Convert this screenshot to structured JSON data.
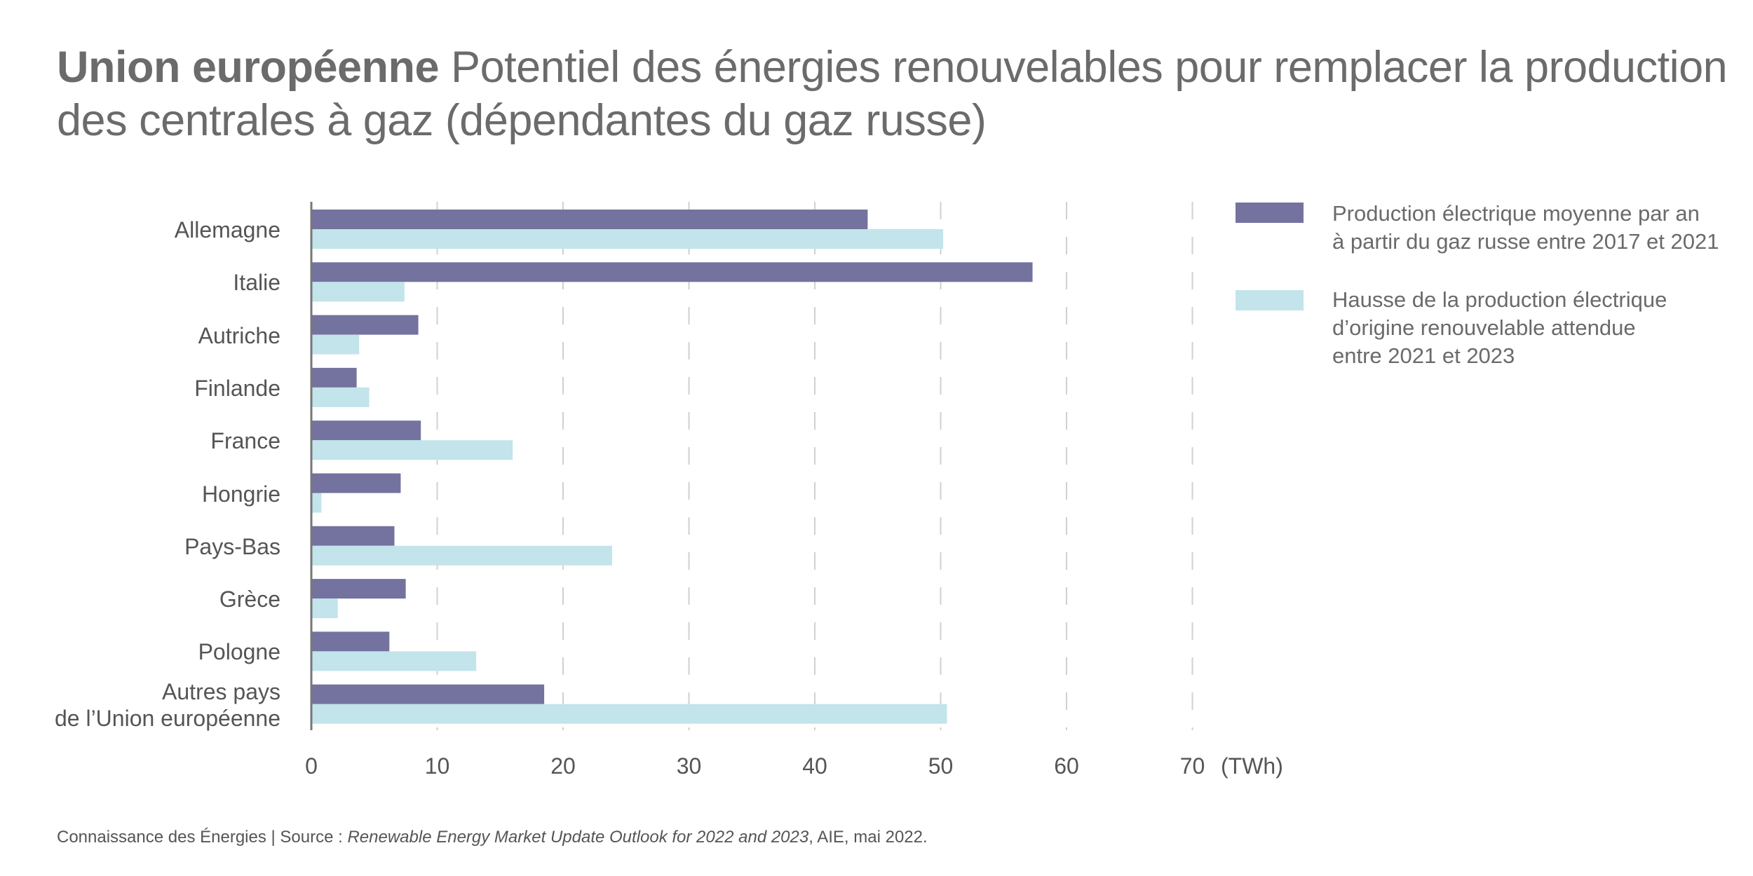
{
  "title": {
    "bold": "Union européenne",
    "rest": " Potentiel des énergies renouvelables pour remplacer la production des centrales à gaz (dépendantes du gaz russe)"
  },
  "footer": {
    "prefix": "Connaissance des Énergies | Source : ",
    "italic": "Renewable Energy Market Update Outlook for 2022 and 2023",
    "suffix": ", AIE, mai 2022."
  },
  "colors": {
    "series1": "#74729f",
    "series2": "#c2e4ea",
    "axis": "#777777",
    "grid": "#d0d0d0"
  },
  "chart_data": {
    "type": "bar",
    "orientation": "horizontal",
    "title": "Union européenne Potentiel des énergies renouvelables pour remplacer la production des centrales à gaz (dépendantes du gaz russe)",
    "xlabel": "(TWh)",
    "ylabel": "",
    "xlim": [
      0,
      70
    ],
    "xticks": [
      0,
      10,
      20,
      30,
      40,
      50,
      60,
      70
    ],
    "xtick_labels": [
      "0",
      "10",
      "20",
      "30",
      "40",
      "50",
      "60",
      "70"
    ],
    "grid": "vertical dashed",
    "legend_position": "top-right",
    "categories": [
      "Allemagne",
      "Italie",
      "Autriche",
      "Finlande",
      "France",
      "Hongrie",
      "Pays-Bas",
      "Grèce",
      "Pologne",
      "Autres pays\nde l’Union européenne"
    ],
    "series": [
      {
        "name": "Production électrique moyenne par an\nà partir du gaz russe entre 2017 et 2021",
        "color": "#74729f",
        "values": [
          44.2,
          57.3,
          8.5,
          3.6,
          8.7,
          7.1,
          6.6,
          7.5,
          6.2,
          18.5
        ]
      },
      {
        "name": "Hausse de la production électrique\nd’origine renouvelable attendue\nentre 2021 et 2023",
        "color": "#c2e4ea",
        "values": [
          50.2,
          7.4,
          3.8,
          4.6,
          16.0,
          0.8,
          23.9,
          2.1,
          13.1,
          50.5
        ]
      }
    ]
  }
}
